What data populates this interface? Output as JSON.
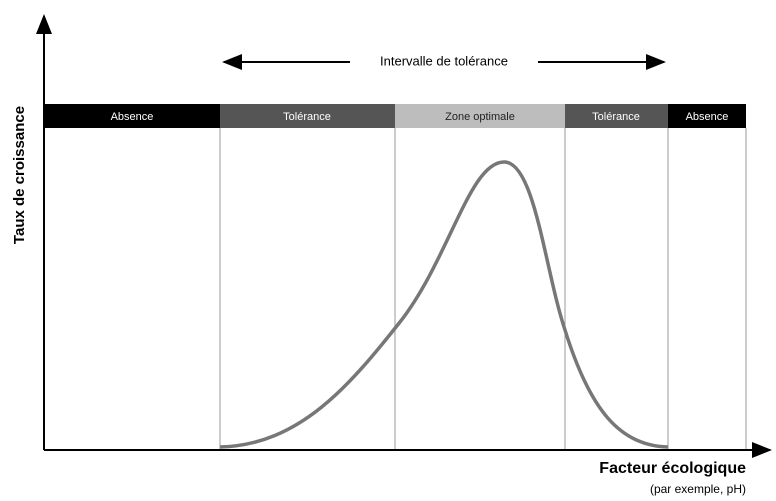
{
  "y_axis_label": "Taux de croissance",
  "x_axis_label": "Facteur écologique",
  "x_axis_sublabel": "(par exemple, pH)",
  "interval_label": "Intervalle de tolérance",
  "zones": [
    {
      "label": "Absence"
    },
    {
      "label": "Tolérance"
    },
    {
      "label": "Zone optimale"
    },
    {
      "label": "Tolérance"
    },
    {
      "label": "Absence"
    }
  ]
}
